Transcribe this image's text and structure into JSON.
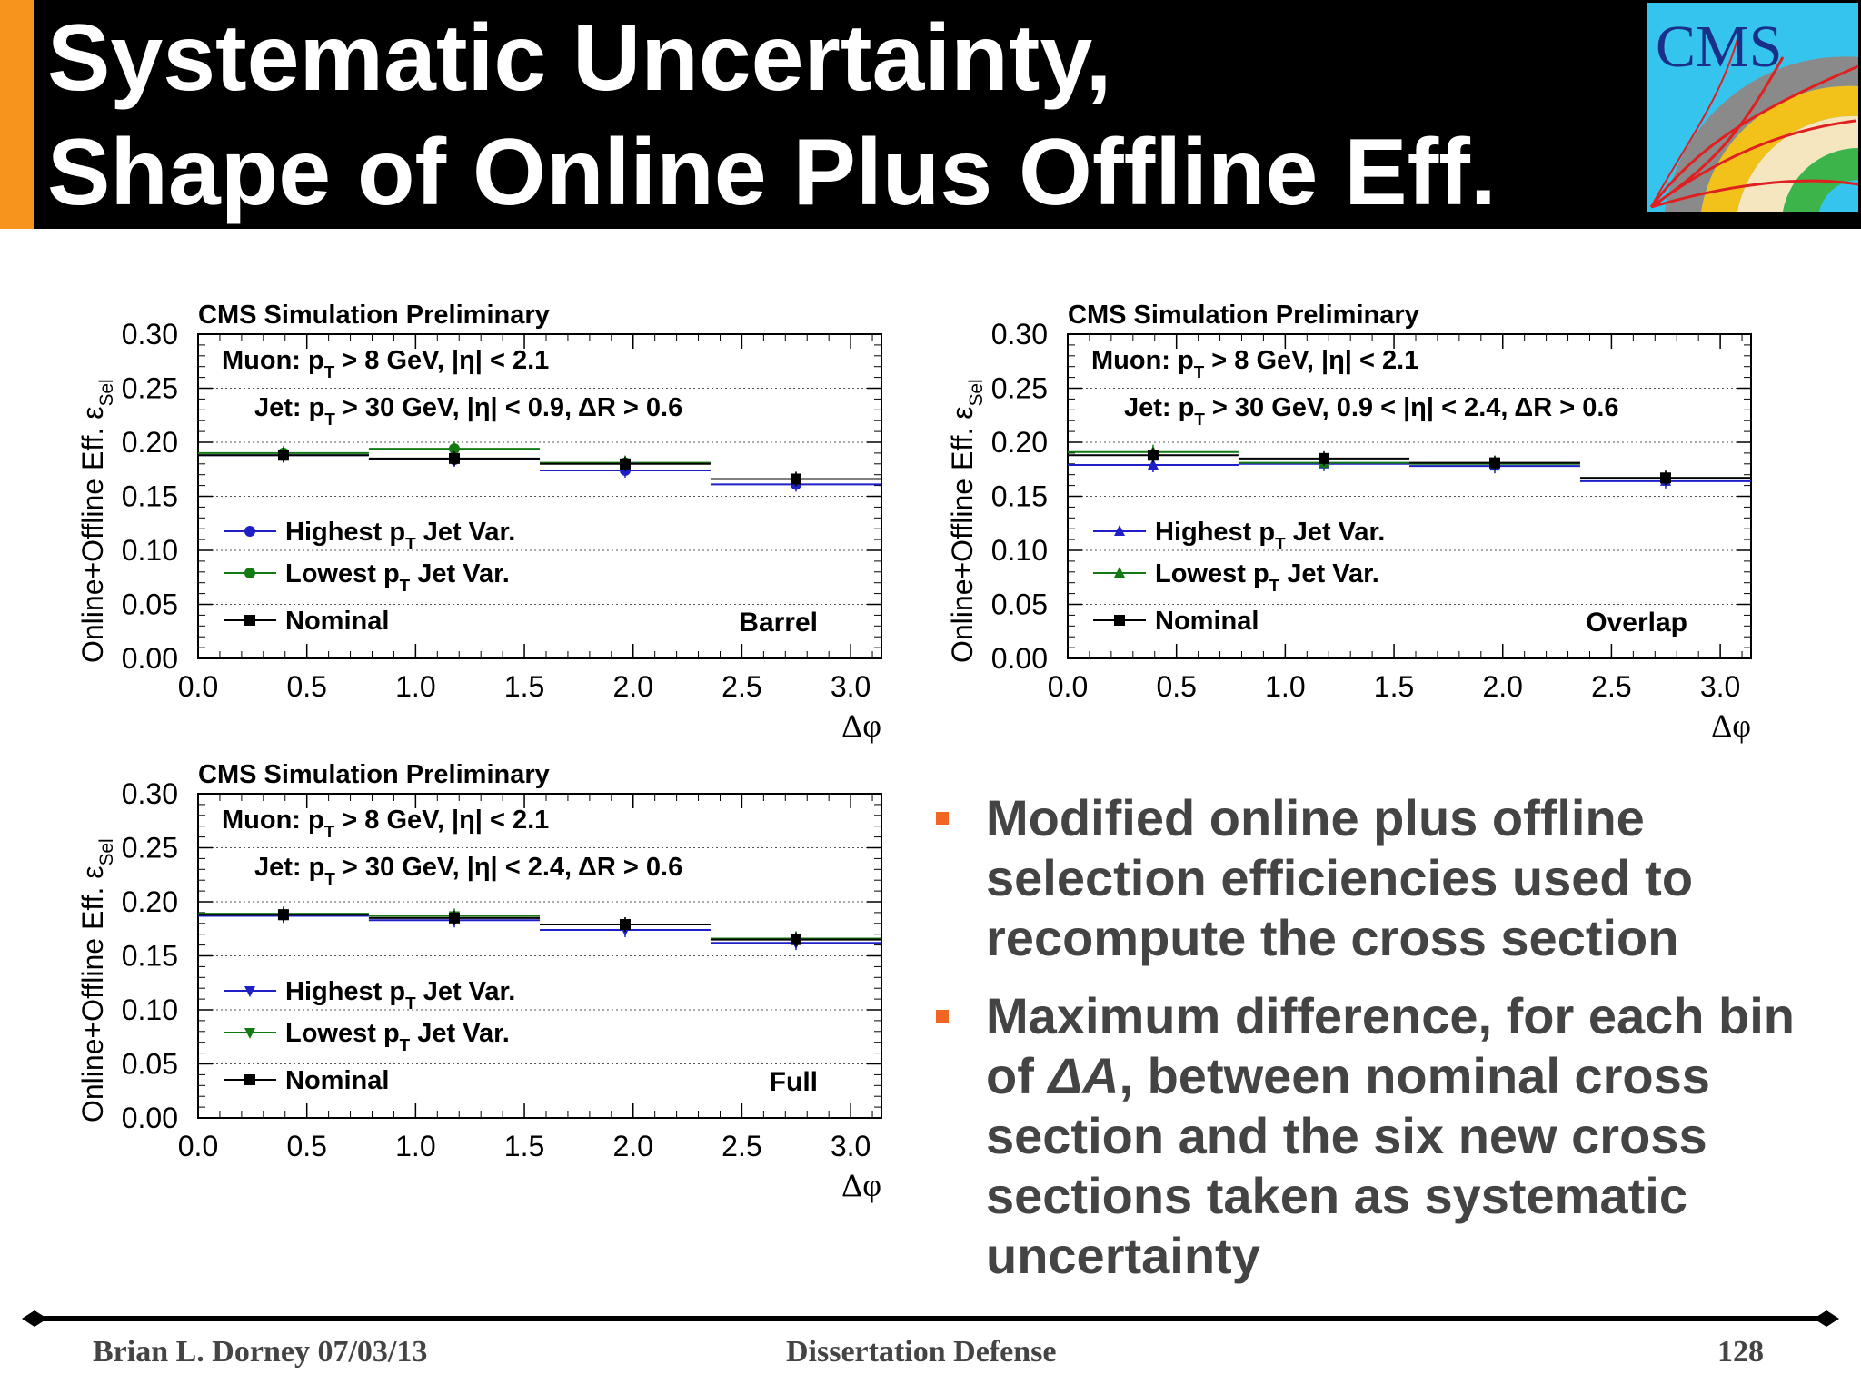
{
  "slide": {
    "title_line1": "Systematic Uncertainty,",
    "title_line2": "Shape of Online Plus Offline Eff.",
    "logo_text": "CMS",
    "footer": {
      "author_date": "Brian L. Dorney 07/03/13",
      "center": "Dissertation Defense",
      "page": "128"
    },
    "bullets": [
      {
        "text": "Modified online plus offline selection efficiencies used to recompute the cross section"
      },
      {
        "pre": "Maximum difference, for each bin of ",
        "italic": "ΔA",
        "post": ", between nominal cross section and the six new cross sections taken as systematic uncertainty"
      }
    ]
  },
  "colors": {
    "accent": "#f7941d",
    "bullet": "#f26522",
    "highest": "#1f1fc8",
    "lowest": "#137a13",
    "nominal": "#000000"
  },
  "chart_data": [
    {
      "type": "scatter",
      "header": "CMS Simulation Preliminary",
      "cut_muon": "Muon: p_T > 8 GeV, |η| < 2.1",
      "cut_jet": "Jet: p_T > 30 GeV, |η| < 0.9, ΔR > 0.6",
      "region": "Barrel",
      "ylabel": "Online+Offline Eff. ε_Sel",
      "xlabel": "Δφ",
      "xlim": [
        0,
        3.1416
      ],
      "ylim": [
        0,
        0.3
      ],
      "xticks": [
        "0.0",
        "0.5",
        "1.0",
        "1.5",
        "2.0",
        "2.5",
        "3.0"
      ],
      "yticks": [
        "0.00",
        "0.05",
        "0.10",
        "0.15",
        "0.20",
        "0.25",
        "0.30"
      ],
      "bin_edges": [
        0,
        0.785,
        1.571,
        2.356,
        3.1416
      ],
      "marker_highest": "circle",
      "marker_lowest": "circle",
      "series": [
        {
          "name": "Highest p_T Jet Var.",
          "values": [
            0.188,
            0.184,
            0.174,
            0.161
          ]
        },
        {
          "name": "Lowest p_T Jet Var.",
          "values": [
            0.19,
            0.194,
            0.181,
            0.166
          ]
        },
        {
          "name": "Nominal",
          "values": [
            0.188,
            0.185,
            0.18,
            0.166
          ]
        }
      ]
    },
    {
      "type": "scatter",
      "header": "CMS Simulation Preliminary",
      "cut_muon": "Muon: p_T > 8 GeV, |η| < 2.1",
      "cut_jet": "Jet: p_T > 30 GeV, 0.9 < |η| < 2.4, ΔR > 0.6",
      "region": "Overlap",
      "ylabel": "Online+Offline Eff. ε_Sel",
      "xlabel": "Δφ",
      "xlim": [
        0,
        3.1416
      ],
      "ylim": [
        0,
        0.3
      ],
      "xticks": [
        "0.0",
        "0.5",
        "1.0",
        "1.5",
        "2.0",
        "2.5",
        "3.0"
      ],
      "yticks": [
        "0.00",
        "0.05",
        "0.10",
        "0.15",
        "0.20",
        "0.25",
        "0.30"
      ],
      "bin_edges": [
        0,
        0.785,
        1.571,
        2.356,
        3.1416
      ],
      "marker_highest": "triangle-up",
      "marker_lowest": "triangle-up",
      "series": [
        {
          "name": "Highest p_T Jet Var.",
          "values": [
            0.179,
            0.18,
            0.178,
            0.164
          ]
        },
        {
          "name": "Lowest p_T Jet Var.",
          "values": [
            0.191,
            0.181,
            0.18,
            0.167
          ]
        },
        {
          "name": "Nominal",
          "values": [
            0.188,
            0.185,
            0.181,
            0.167
          ]
        }
      ]
    },
    {
      "type": "scatter",
      "header": "CMS Simulation Preliminary",
      "cut_muon": "Muon: p_T > 8 GeV, |η| < 2.1",
      "cut_jet": "Jet: p_T > 30 GeV, |η| < 2.4, ΔR > 0.6",
      "region": "Full",
      "ylabel": "Online+Offline Eff. ε_Sel",
      "xlabel": "Δφ",
      "xlim": [
        0,
        3.1416
      ],
      "ylim": [
        0,
        0.3
      ],
      "xticks": [
        "0.0",
        "0.5",
        "1.0",
        "1.5",
        "2.0",
        "2.5",
        "3.0"
      ],
      "yticks": [
        "0.00",
        "0.05",
        "0.10",
        "0.15",
        "0.20",
        "0.25",
        "0.30"
      ],
      "bin_edges": [
        0,
        0.785,
        1.571,
        2.356,
        3.1416
      ],
      "marker_highest": "triangle-down",
      "marker_lowest": "triangle-down",
      "series": [
        {
          "name": "Highest p_T Jet Var.",
          "values": [
            0.187,
            0.183,
            0.174,
            0.162
          ]
        },
        {
          "name": "Lowest p_T Jet Var.",
          "values": [
            0.189,
            0.187,
            0.179,
            0.166
          ]
        },
        {
          "name": "Nominal",
          "values": [
            0.188,
            0.185,
            0.179,
            0.165
          ]
        }
      ]
    }
  ]
}
